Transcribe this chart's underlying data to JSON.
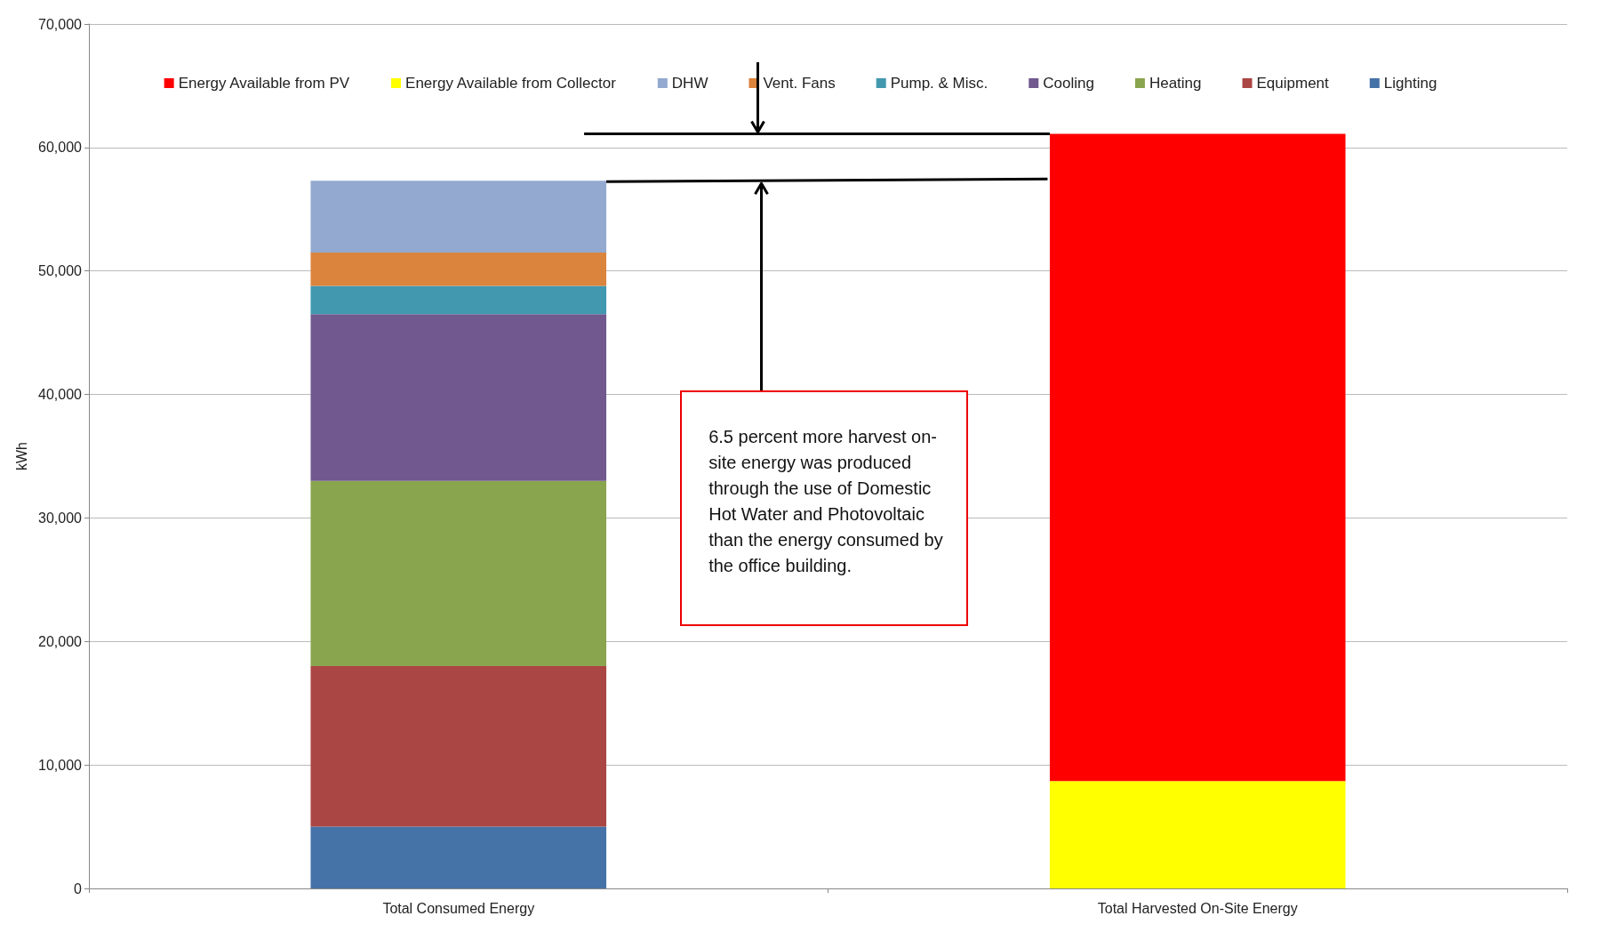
{
  "chart_data": {
    "type": "bar",
    "stacked": true,
    "ylabel": "kWh",
    "categories": [
      "Total Consumed Energy",
      "Total Harvested On-Site Energy"
    ],
    "series": [
      {
        "name": "Lighting",
        "color": "#4572a7",
        "values": [
          5000,
          null
        ]
      },
      {
        "name": "Equipment",
        "color": "#aa4643",
        "values": [
          13000,
          null
        ]
      },
      {
        "name": "Heating",
        "color": "#89a54e",
        "values": [
          15000,
          null
        ]
      },
      {
        "name": "Cooling",
        "color": "#71588f",
        "values": [
          13500,
          null
        ]
      },
      {
        "name": "Pump. & Misc.",
        "color": "#4198af",
        "values": [
          2300,
          null
        ]
      },
      {
        "name": "Vent. Fans",
        "color": "#db843d",
        "values": [
          2700,
          null
        ]
      },
      {
        "name": "DHW",
        "color": "#93a9cf",
        "values": [
          5800,
          null
        ]
      },
      {
        "name": "Energy Available from Collector",
        "color": "#ffff00",
        "values": [
          null,
          8700
        ]
      },
      {
        "name": "Energy Available from PV",
        "color": "#ff0000",
        "values": [
          null,
          52400
        ]
      }
    ],
    "ylim": [
      0,
      70000
    ],
    "yticks": [
      0,
      {
        "value": 10000,
        "label": "10,000"
      },
      {
        "value": 20000,
        "label": "20,000"
      },
      {
        "value": 30000,
        "label": "30,000"
      },
      {
        "value": 40000,
        "label": "40,000"
      },
      {
        "value": 50000,
        "label": "50,000"
      },
      {
        "value": 60000,
        "label": "60,000"
      },
      {
        "value": 70000,
        "label": "70,000"
      }
    ],
    "grid": "y",
    "legend": "top",
    "annotations": [
      "6.5 percent more harvest on-site energy was produced through the use of Domestic Hot Water and Photovoltaic than the energy consumed by the office building."
    ]
  }
}
